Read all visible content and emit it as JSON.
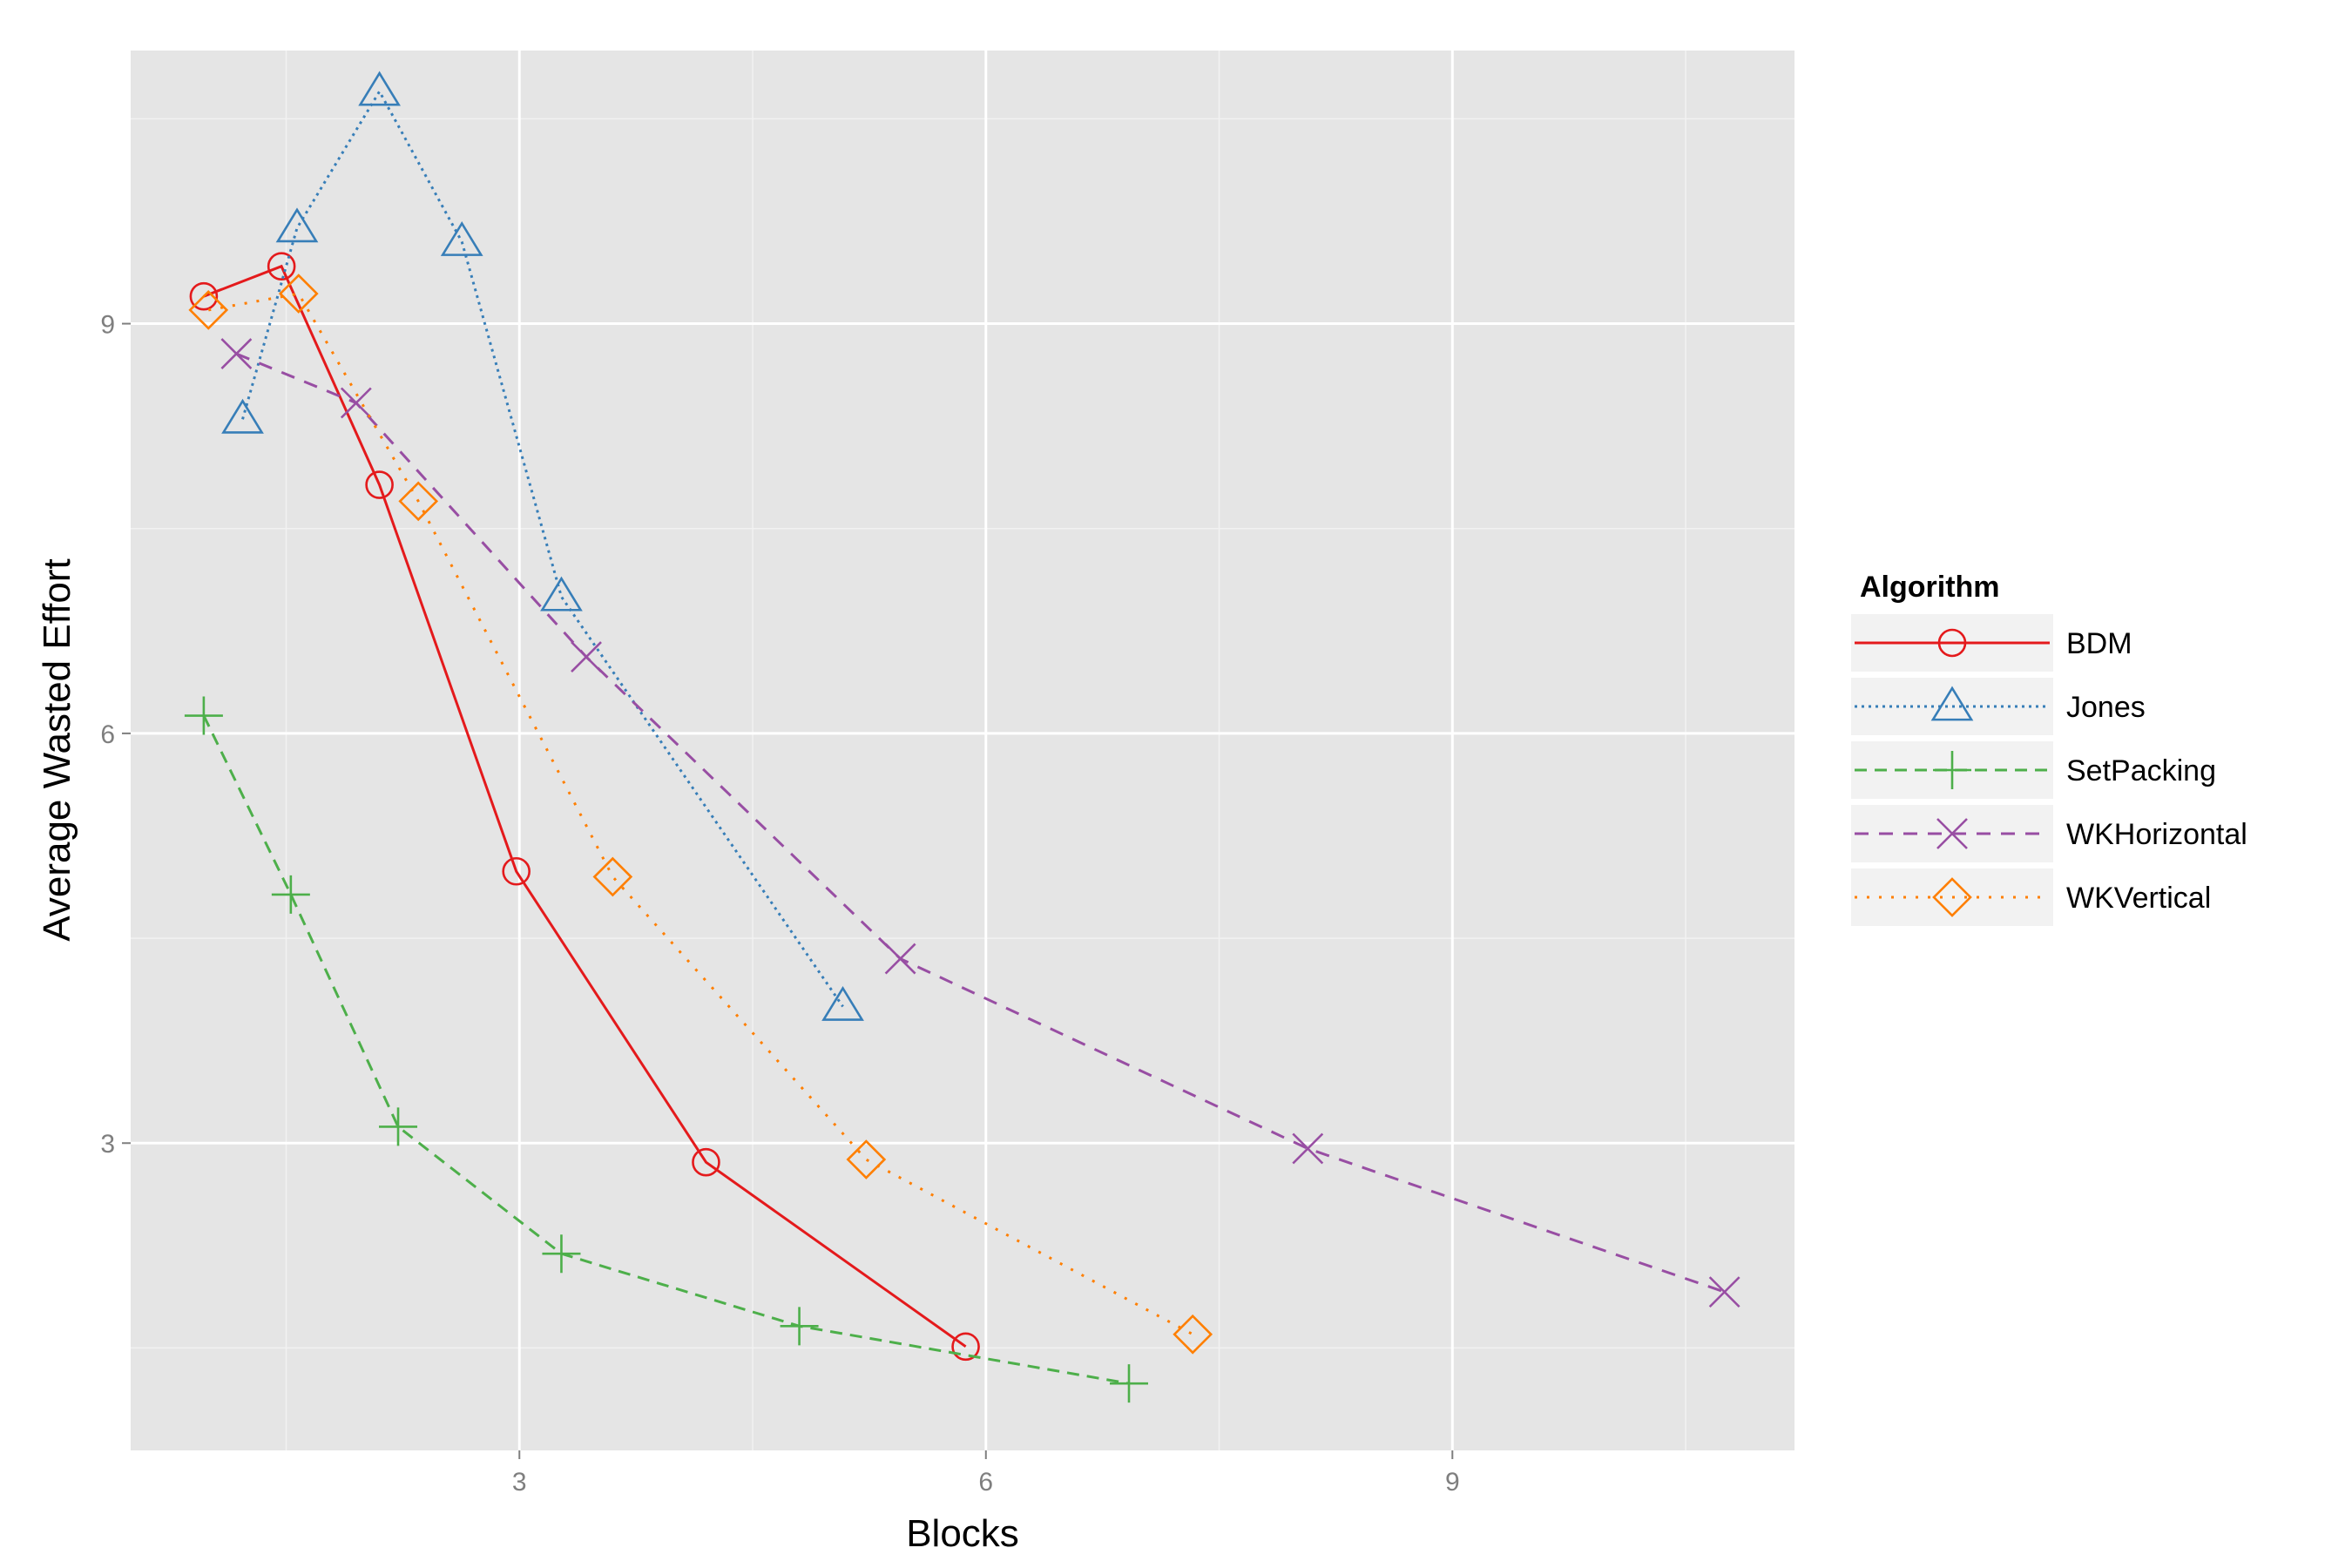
{
  "chart_data": {
    "type": "line",
    "xlabel": "Blocks",
    "ylabel": "Average Wasted Effort",
    "xlim": [
      0.5,
      11.2
    ],
    "ylim": [
      0.75,
      11.0
    ],
    "x_ticks": [
      3,
      6,
      9
    ],
    "x_tick_labels": [
      "3",
      "6",
      "9"
    ],
    "y_ticks": [
      3,
      6,
      9
    ],
    "y_tick_labels": [
      "3",
      "6",
      "9"
    ],
    "grid": true,
    "panel_background": "#e5e5e5",
    "legend": {
      "title": "Algorithm",
      "position": "right"
    },
    "series": [
      {
        "name": "BDM",
        "color": "#e41a1c",
        "linestyle": "solid",
        "marker": "circle",
        "x": [
          0.97,
          1.47,
          2.1,
          2.98,
          4.2,
          5.87
        ],
        "y": [
          9.2,
          9.42,
          7.82,
          4.99,
          2.86,
          1.51
        ]
      },
      {
        "name": "Jones",
        "color": "#377eb8",
        "linestyle": "dotted-dense",
        "marker": "triangle",
        "x": [
          1.22,
          1.57,
          2.1,
          2.63,
          3.27,
          5.08
        ],
        "y": [
          8.3,
          9.7,
          10.7,
          9.6,
          7.0,
          4.0
        ]
      },
      {
        "name": "SetPacking",
        "color": "#4daf4a",
        "linestyle": "dashed",
        "marker": "plus",
        "x": [
          0.97,
          1.53,
          2.22,
          3.27,
          4.8,
          6.92
        ],
        "y": [
          6.13,
          4.82,
          3.12,
          2.19,
          1.66,
          1.24
        ]
      },
      {
        "name": "WKHorizontal",
        "color": "#984ea3",
        "linestyle": "dashed-long",
        "marker": "x",
        "x": [
          1.18,
          1.95,
          3.43,
          5.45,
          8.07,
          10.75
        ],
        "y": [
          8.78,
          8.42,
          6.56,
          4.35,
          2.96,
          1.91
        ]
      },
      {
        "name": "WKVertical",
        "color": "#ff7f00",
        "linestyle": "dotted",
        "marker": "diamond",
        "x": [
          1.0,
          1.58,
          2.35,
          3.6,
          5.23,
          7.33
        ],
        "y": [
          9.1,
          9.22,
          7.7,
          4.95,
          2.88,
          1.6
        ]
      }
    ]
  }
}
